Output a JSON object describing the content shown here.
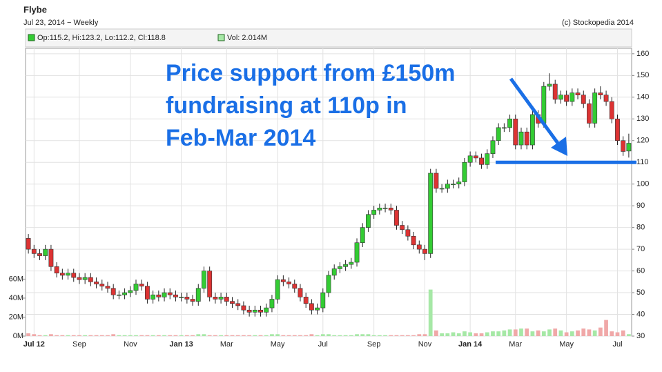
{
  "chart_data": {
    "type": "candlestick",
    "title": "Flybe",
    "subtitle": "Jul 23, 2014 − Weekly",
    "source": "(c) Stockopedia 2014",
    "grid": true,
    "categories": [
      null,
      "Jul 12",
      null,
      null,
      null,
      null,
      null,
      null,
      null,
      "Sep",
      null,
      null,
      null,
      null,
      null,
      null,
      null,
      null,
      "Nov",
      null,
      null,
      null,
      null,
      null,
      null,
      null,
      null,
      "Jan 13",
      null,
      null,
      null,
      null,
      null,
      null,
      null,
      "Mar",
      null,
      null,
      null,
      null,
      null,
      null,
      null,
      null,
      "May",
      null,
      null,
      null,
      null,
      null,
      null,
      null,
      "Jul",
      null,
      null,
      null,
      null,
      null,
      null,
      null,
      null,
      "Sep",
      null,
      null,
      null,
      null,
      null,
      null,
      null,
      null,
      "Nov",
      null,
      null,
      null,
      null,
      null,
      null,
      null,
      "Jan 14",
      null,
      null,
      null,
      null,
      null,
      null,
      null,
      "Mar",
      null,
      null,
      null,
      null,
      null,
      null,
      null,
      null,
      "May",
      null,
      null,
      null,
      null,
      null,
      null,
      null,
      null,
      "Jul",
      null,
      null
    ],
    "bold_categories": [
      "Jul 12",
      "Jan 13",
      "Jan 14"
    ],
    "series": [
      {
        "name": "Op:115.2, Hi:123.2, Lo:112.2, Cl:118.8",
        "type": "candlestick",
        "axis": "y2",
        "up_color": "#33cc33",
        "down_color": "#dd3333",
        "open": [
          75,
          70,
          68,
          67,
          70,
          62,
          59,
          58,
          59,
          57,
          56,
          57,
          55,
          54,
          53,
          52,
          49,
          49,
          50,
          51,
          54,
          53,
          47,
          49,
          48,
          50,
          49,
          48,
          48,
          47,
          46,
          52,
          60,
          48,
          47,
          48,
          46,
          45,
          44,
          42,
          41,
          42,
          41,
          43,
          47,
          56,
          55,
          54,
          52,
          48,
          45,
          42,
          43,
          50,
          58,
          61,
          62,
          63,
          64,
          73,
          80,
          86,
          88,
          89,
          89,
          88,
          81,
          79,
          76,
          72,
          70,
          68,
          105,
          98,
          98,
          100,
          100,
          101,
          110,
          113,
          112,
          109,
          114,
          120,
          126,
          126,
          130,
          118,
          124,
          118,
          132,
          128,
          145,
          146,
          139,
          141,
          138,
          142,
          141,
          137,
          128,
          142,
          141,
          138,
          130,
          120,
          115.2
        ],
        "high": [
          77,
          72,
          70,
          72,
          72,
          64,
          61,
          61,
          61,
          59,
          59,
          59,
          57,
          56,
          55,
          54,
          51,
          52,
          53,
          56,
          56,
          55,
          51,
          51,
          52,
          52,
          51,
          50,
          50,
          49,
          54,
          62,
          62,
          50,
          50,
          50,
          48,
          47,
          46,
          44,
          44,
          44,
          45,
          49,
          58,
          58,
          57,
          56,
          54,
          50,
          47,
          45,
          52,
          60,
          63,
          64,
          65,
          66,
          75,
          82,
          88,
          90,
          91,
          91,
          91,
          90,
          83,
          81,
          78,
          74,
          72,
          107,
          107,
          100,
          102,
          102,
          103,
          112,
          115,
          115,
          114,
          116,
          122,
          128,
          128,
          132,
          132,
          126,
          126,
          134,
          134,
          147,
          151,
          148,
          143,
          143,
          144,
          144,
          143,
          139,
          144,
          145,
          143,
          140,
          132,
          122,
          123.2
        ],
        "low": [
          68,
          66,
          65,
          65,
          60,
          57,
          56,
          56,
          55,
          54,
          54,
          53,
          52,
          51,
          50,
          47,
          47,
          47,
          48,
          49,
          51,
          45,
          45,
          46,
          46,
          47,
          46,
          46,
          45,
          44,
          44,
          50,
          46,
          45,
          45,
          44,
          43,
          42,
          40,
          39,
          39,
          39,
          39,
          41,
          45,
          53,
          52,
          50,
          46,
          43,
          40,
          40,
          41,
          48,
          56,
          59,
          60,
          61,
          62,
          71,
          78,
          84,
          86,
          87,
          86,
          79,
          77,
          74,
          70,
          68,
          65,
          66,
          96,
          96,
          96,
          98,
          98,
          99,
          108,
          110,
          107,
          107,
          112,
          118,
          124,
          124,
          116,
          116,
          116,
          116,
          126,
          126,
          143,
          137,
          137,
          136,
          136,
          139,
          135,
          126,
          126,
          139,
          136,
          128,
          118,
          113,
          112.2
        ],
        "close": [
          70,
          68,
          67,
          70,
          62,
          59,
          58,
          59,
          57,
          56,
          57,
          55,
          54,
          53,
          52,
          49,
          49,
          50,
          51,
          54,
          53,
          47,
          49,
          48,
          50,
          49,
          48,
          48,
          47,
          46,
          52,
          60,
          48,
          47,
          48,
          46,
          45,
          44,
          42,
          41,
          42,
          41,
          43,
          47,
          56,
          55,
          54,
          52,
          48,
          45,
          42,
          43,
          50,
          58,
          61,
          62,
          63,
          64,
          73,
          80,
          86,
          88,
          89,
          89,
          88,
          81,
          79,
          76,
          72,
          70,
          68,
          105,
          98,
          98,
          100,
          100,
          101,
          110,
          113,
          112,
          109,
          114,
          120,
          126,
          126,
          130,
          118,
          124,
          118,
          132,
          128,
          145,
          146,
          139,
          141,
          138,
          142,
          141,
          137,
          128,
          142,
          141,
          138,
          130,
          120,
          115,
          118.8
        ]
      },
      {
        "name": "Vol: 2.014M",
        "type": "bar",
        "up_color": "#a6e8a6",
        "down_color": "#f0a8a8",
        "values": [
          3,
          2,
          1,
          1,
          2,
          1,
          1,
          1,
          1,
          1,
          1,
          1,
          1,
          1,
          1,
          2,
          1,
          1,
          1,
          1,
          1,
          1,
          1,
          1,
          1,
          1,
          1,
          1,
          1,
          1,
          2,
          2,
          1,
          1,
          1,
          1,
          1,
          1,
          1,
          1,
          1,
          1,
          1,
          2,
          2,
          1,
          1,
          1,
          1,
          1,
          2,
          1,
          2,
          2,
          1,
          1,
          1,
          1,
          2,
          2,
          2,
          1,
          1,
          1,
          1,
          1,
          1,
          1,
          1,
          2,
          2,
          49,
          6,
          3,
          3,
          4,
          3,
          5,
          4,
          3,
          3,
          4,
          5,
          5,
          6,
          7,
          7,
          8,
          8,
          5,
          6,
          5,
          7,
          8,
          6,
          4,
          5,
          6,
          8,
          7,
          6,
          9,
          17,
          5,
          4,
          6,
          2.014
        ]
      }
    ],
    "ylim": [
      0,
      303
    ],
    "yticks": [
      {
        "value": 0,
        "label": "0M"
      },
      {
        "value": 20,
        "label": "20M"
      },
      {
        "value": 40,
        "label": "40M"
      },
      {
        "value": 60,
        "label": "60M"
      }
    ],
    "y2lim": [
      30,
      162.5
    ],
    "y2ticks": [
      30,
      40,
      50,
      60,
      70,
      80,
      90,
      100,
      110,
      120,
      130,
      140,
      150,
      160
    ],
    "annotation": {
      "lines": [
        "Price support from £150m",
        "fundraising at 110p in",
        "Feb-Mar 2014"
      ],
      "color": "#1a6fe6"
    },
    "support_level": 110
  }
}
